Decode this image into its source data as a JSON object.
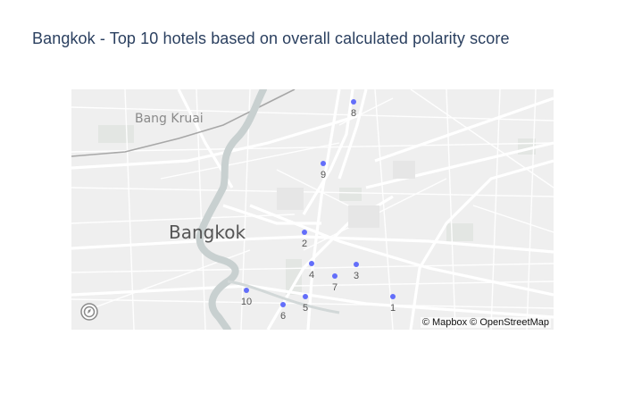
{
  "title": "Bangkok - Top 10 hotels based on overall calculated polarity score",
  "map": {
    "place_labels": {
      "city": "Bangkok",
      "district": "Bang Kruai"
    },
    "attribution": "© Mapbox © OpenStreetMap",
    "logo_icon": "mapbox-logo-icon",
    "marker_color": "#636efa"
  },
  "hotels": [
    {
      "rank": "1"
    },
    {
      "rank": "2"
    },
    {
      "rank": "3"
    },
    {
      "rank": "4"
    },
    {
      "rank": "5"
    },
    {
      "rank": "6"
    },
    {
      "rank": "7"
    },
    {
      "rank": "8"
    },
    {
      "rank": "9"
    },
    {
      "rank": "10"
    }
  ]
}
